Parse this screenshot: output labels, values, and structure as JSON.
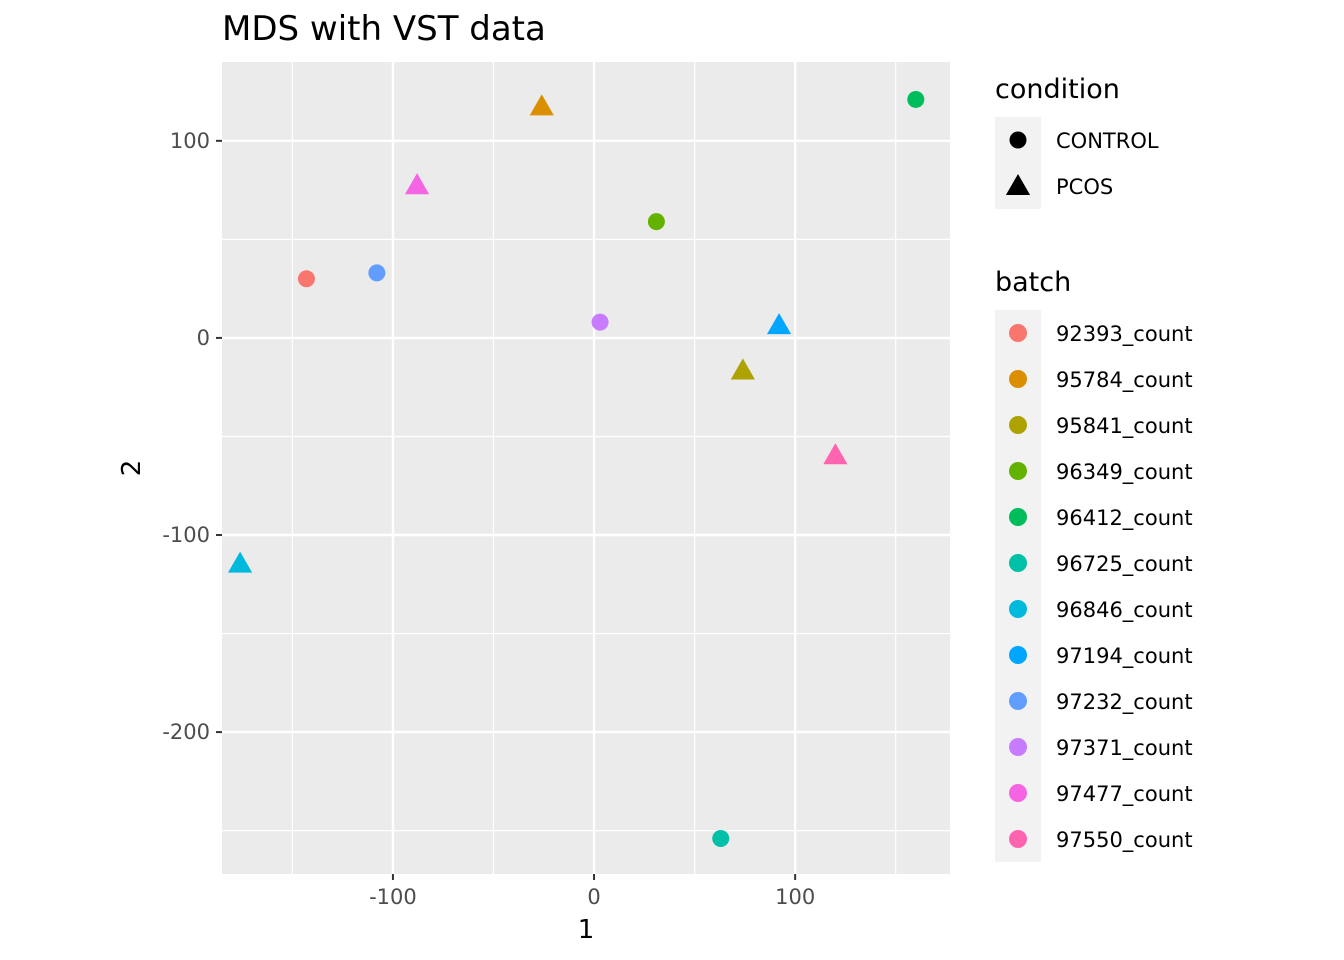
{
  "chart_data": {
    "type": "scatter",
    "title": "MDS with VST data",
    "xlabel": "1",
    "ylabel": "2",
    "xlim": [
      -185,
      177
    ],
    "ylim": [
      -272,
      140
    ],
    "x_ticks": [
      -100,
      0,
      100
    ],
    "y_ticks": [
      100,
      0,
      -100,
      -200
    ],
    "x_tick_labels": [
      "-100",
      "0",
      "100"
    ],
    "y_tick_labels": [
      "100",
      "0",
      "-100",
      "-200"
    ],
    "grid": true,
    "legend_placement": "right",
    "legends": [
      {
        "title": "condition",
        "entries": [
          {
            "label": "CONTROL",
            "shape": "circle"
          },
          {
            "label": "PCOS",
            "shape": "triangle"
          }
        ]
      },
      {
        "title": "batch",
        "entries": [
          {
            "label": "92393_count",
            "color": "#F8766D"
          },
          {
            "label": "95784_count",
            "color": "#DB8E00"
          },
          {
            "label": "95841_count",
            "color": "#AEA200"
          },
          {
            "label": "96349_count",
            "color": "#64B200"
          },
          {
            "label": "96412_count",
            "color": "#00BD5C"
          },
          {
            "label": "96725_count",
            "color": "#00C1A7"
          },
          {
            "label": "96846_count",
            "color": "#00BADE"
          },
          {
            "label": "97194_count",
            "color": "#00A6FF"
          },
          {
            "label": "97232_count",
            "color": "#619CFF"
          },
          {
            "label": "97371_count",
            "color": "#C77CFF"
          },
          {
            "label": "97477_count",
            "color": "#F564E3"
          },
          {
            "label": "97550_count",
            "color": "#FF64B0"
          }
        ]
      }
    ],
    "points": [
      {
        "batch": "92393_count",
        "condition": "CONTROL",
        "x": -143,
        "y": 30
      },
      {
        "batch": "95784_count",
        "condition": "PCOS",
        "x": -26,
        "y": 117
      },
      {
        "batch": "95841_count",
        "condition": "PCOS",
        "x": 74,
        "y": -17
      },
      {
        "batch": "96349_count",
        "condition": "CONTROL",
        "x": 31,
        "y": 59
      },
      {
        "batch": "96412_count",
        "condition": "CONTROL",
        "x": 160,
        "y": 121
      },
      {
        "batch": "96725_count",
        "condition": "CONTROL",
        "x": 63,
        "y": -254
      },
      {
        "batch": "96846_count",
        "condition": "PCOS",
        "x": -176,
        "y": -115
      },
      {
        "batch": "97194_count",
        "condition": "PCOS",
        "x": 92,
        "y": 6
      },
      {
        "batch": "97232_count",
        "condition": "CONTROL",
        "x": -108,
        "y": 33
      },
      {
        "batch": "97371_count",
        "condition": "CONTROL",
        "x": 3,
        "y": 8
      },
      {
        "batch": "97477_count",
        "condition": "PCOS",
        "x": -88,
        "y": 77
      },
      {
        "batch": "97550_count",
        "condition": "PCOS",
        "x": 120,
        "y": -60
      }
    ]
  },
  "colors": {
    "panel_background": "#EBEBEB",
    "grid_line": "#FFFFFF",
    "tick_label": "#4D4D4D",
    "legend_key_background": "#F2F2F2"
  }
}
